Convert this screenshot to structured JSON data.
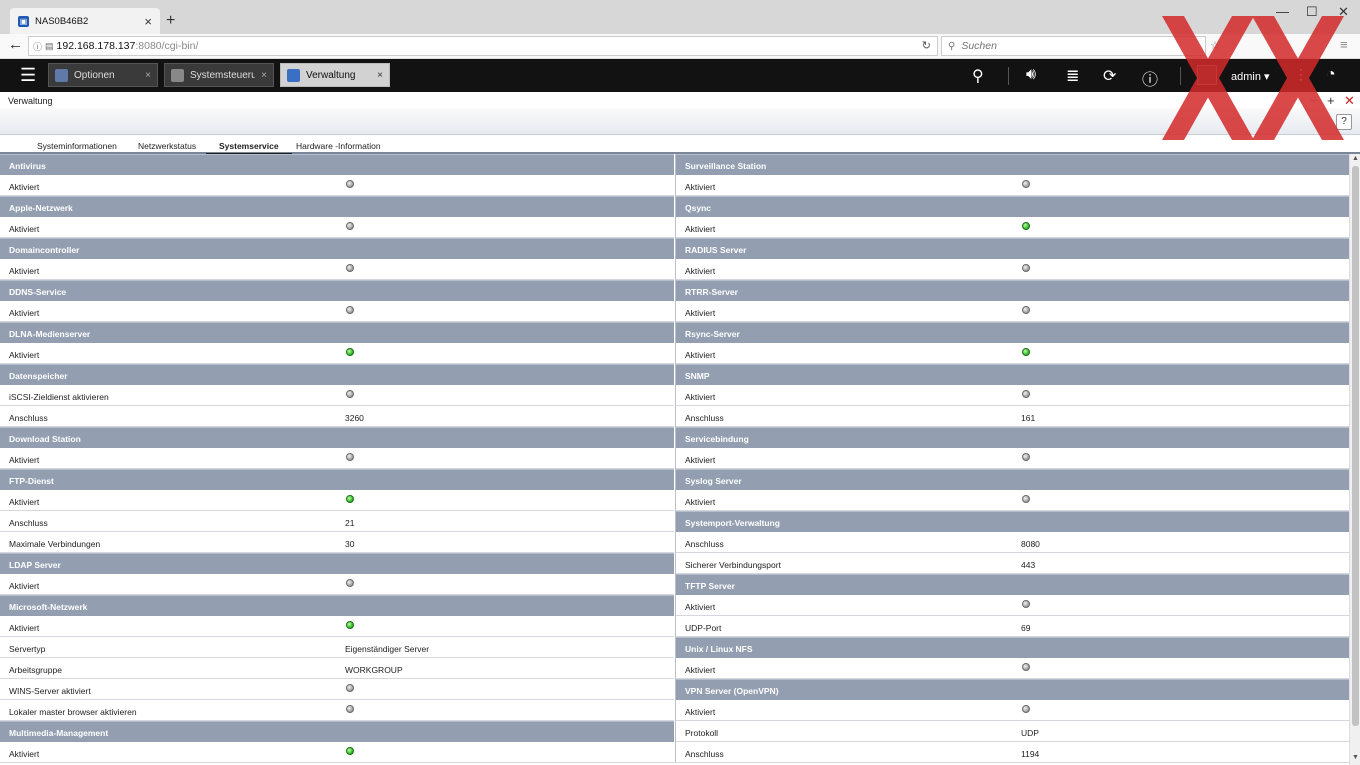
{
  "browser": {
    "tab_title": "NAS0B46B2",
    "url_host": "192.168.178.137",
    "url_path": ":8080/cgi-bin/",
    "search_placeholder": "Suchen"
  },
  "qnap": {
    "tabs": [
      {
        "label": "Optionen",
        "active": false
      },
      {
        "label": "Systemsteueru...",
        "active": false
      },
      {
        "label": "Verwaltung",
        "active": true
      }
    ],
    "user": "admin ▾"
  },
  "window": {
    "title": "Verwaltung",
    "help": "?"
  },
  "subtabs": [
    {
      "label": "Systeminformationen",
      "active": false
    },
    {
      "label": "Netzwerkstatus",
      "active": false
    },
    {
      "label": "Systemservice",
      "active": true
    },
    {
      "label": "Hardware -Information",
      "active": false
    }
  ],
  "sections_left": [
    {
      "title": "Antivirus",
      "rows": [
        {
          "label": "Aktiviert",
          "status": "off"
        }
      ]
    },
    {
      "title": "Apple-Netzwerk",
      "rows": [
        {
          "label": "Aktiviert",
          "status": "off"
        }
      ]
    },
    {
      "title": "Domaincontroller",
      "rows": [
        {
          "label": "Aktiviert",
          "status": "off"
        }
      ]
    },
    {
      "title": "DDNS-Service",
      "rows": [
        {
          "label": "Aktiviert",
          "status": "off"
        }
      ]
    },
    {
      "title": "DLNA-Medienserver",
      "rows": [
        {
          "label": "Aktiviert",
          "status": "on"
        }
      ]
    },
    {
      "title": "Datenspeicher",
      "rows": [
        {
          "label": "iSCSI-Zieldienst aktivieren",
          "status": "off"
        },
        {
          "label": "Anschluss",
          "value": "3260"
        }
      ]
    },
    {
      "title": "Download Station",
      "rows": [
        {
          "label": "Aktiviert",
          "status": "off"
        }
      ]
    },
    {
      "title": "FTP-Dienst",
      "rows": [
        {
          "label": "Aktiviert",
          "status": "on"
        },
        {
          "label": "Anschluss",
          "value": "21"
        },
        {
          "label": "Maximale Verbindungen",
          "value": "30"
        }
      ]
    },
    {
      "title": "LDAP Server",
      "rows": [
        {
          "label": "Aktiviert",
          "status": "off"
        }
      ]
    },
    {
      "title": "Microsoft-Netzwerk",
      "rows": [
        {
          "label": "Aktiviert",
          "status": "on"
        },
        {
          "label": "Servertyp",
          "value": "Eigenständiger Server"
        },
        {
          "label": "Arbeitsgruppe",
          "value": "WORKGROUP"
        },
        {
          "label": "WINS-Server aktiviert",
          "status": "off"
        },
        {
          "label": "Lokaler master browser aktivieren",
          "status": "off"
        }
      ]
    },
    {
      "title": "Multimedia-Management",
      "rows": [
        {
          "label": "Aktiviert",
          "status": "on"
        }
      ]
    }
  ],
  "sections_right": [
    {
      "title": "Surveillance Station",
      "rows": [
        {
          "label": "Aktiviert",
          "status": "off"
        }
      ]
    },
    {
      "title": "Qsync",
      "rows": [
        {
          "label": "Aktiviert",
          "status": "on"
        }
      ]
    },
    {
      "title": "RADIUS Server",
      "rows": [
        {
          "label": "Aktiviert",
          "status": "off"
        }
      ]
    },
    {
      "title": "RTRR-Server",
      "rows": [
        {
          "label": "Aktiviert",
          "status": "off"
        }
      ]
    },
    {
      "title": "Rsync-Server",
      "rows": [
        {
          "label": "Aktiviert",
          "status": "on"
        }
      ]
    },
    {
      "title": "SNMP",
      "rows": [
        {
          "label": "Aktiviert",
          "status": "off"
        },
        {
          "label": "Anschluss",
          "value": "161"
        }
      ]
    },
    {
      "title": "Servicebindung",
      "rows": [
        {
          "label": "Aktiviert",
          "status": "off"
        }
      ]
    },
    {
      "title": "Syslog Server",
      "rows": [
        {
          "label": "Aktiviert",
          "status": "off"
        }
      ]
    },
    {
      "title": "Systemport-Verwaltung",
      "rows": [
        {
          "label": "Anschluss",
          "value": "8080"
        },
        {
          "label": "Sicherer Verbindungsport",
          "value": "443"
        }
      ]
    },
    {
      "title": "TFTP Server",
      "rows": [
        {
          "label": "Aktiviert",
          "status": "off"
        },
        {
          "label": "UDP-Port",
          "value": "69"
        }
      ]
    },
    {
      "title": "Unix / Linux NFS",
      "rows": [
        {
          "label": "Aktiviert",
          "status": "off"
        }
      ]
    },
    {
      "title": "VPN Server (OpenVPN)",
      "rows": [
        {
          "label": "Aktiviert",
          "status": "off"
        },
        {
          "label": "Protokoll",
          "value": "UDP"
        },
        {
          "label": "Anschluss",
          "value": "1194"
        }
      ]
    }
  ],
  "colors": {
    "section_header": "#939fb1",
    "led_on": "#32b82c",
    "led_off": "#9a9a9a",
    "watermark": "#d42a2a"
  },
  "icons": [
    "hamburger-icon",
    "search-icon",
    "volume-icon",
    "stack-icon",
    "sync-icon",
    "info-icon",
    "dashboard-icon",
    "help-icon"
  ]
}
